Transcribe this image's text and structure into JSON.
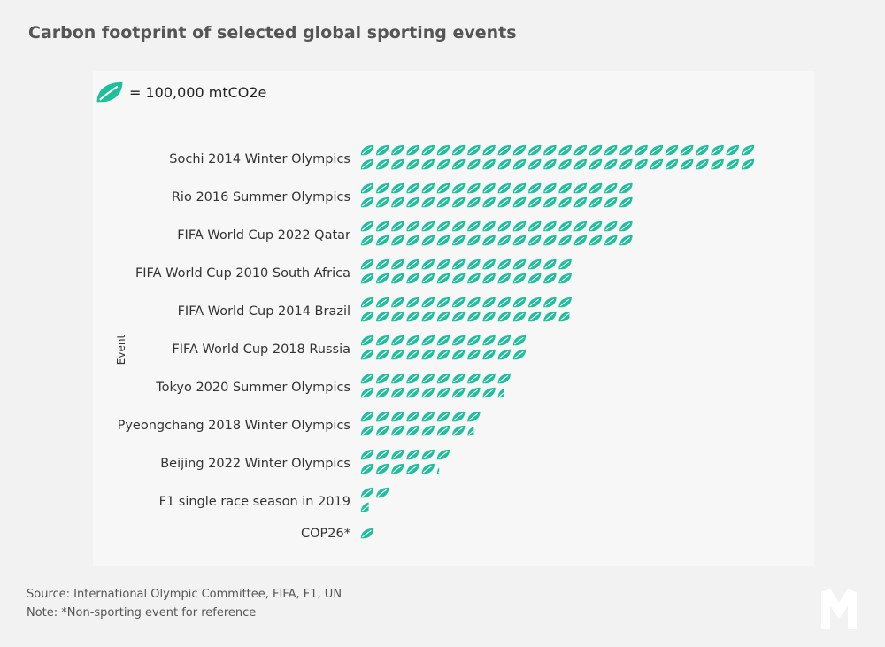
{
  "title": "Carbon footprint of selected global sporting events",
  "legend": {
    "text": "= 100,000 mtCO2e",
    "icon": "leaf-icon"
  },
  "colors": {
    "leaf": "#1fbf9b",
    "background": "#f2f2f2",
    "panel": "#f7f7f7"
  },
  "footer": {
    "source": "Source: International Olympic Committee, FIFA, F1, UN",
    "note": "Note: *Non-sporting event for reference"
  },
  "chart_data": {
    "type": "bar",
    "subtype": "pictogram",
    "title": "Carbon footprint of selected global sporting events",
    "ylabel": "Event",
    "unit_per_icon": "100,000 mtCO2e",
    "categories": [
      "Sochi 2014 Winter Olympics",
      "Rio 2016 Summer Olympics",
      "FIFA World Cup 2022 Qatar",
      "FIFA World Cup 2010 South Africa",
      "FIFA World Cup 2014 Brazil",
      "FIFA World Cup 2018 Russia",
      "Tokyo 2020 Summer Olympics",
      "Pyeongchang 2018 Winter Olympics",
      "Beijing 2022 Winter Olympics",
      "F1 single race season in 2019",
      "COP26*"
    ],
    "values": [
      52,
      36,
      36,
      28,
      27.8,
      22,
      19.5,
      15.5,
      11.2,
      2.6,
      1
    ],
    "value_unit": "x 100,000 mtCO2e"
  }
}
